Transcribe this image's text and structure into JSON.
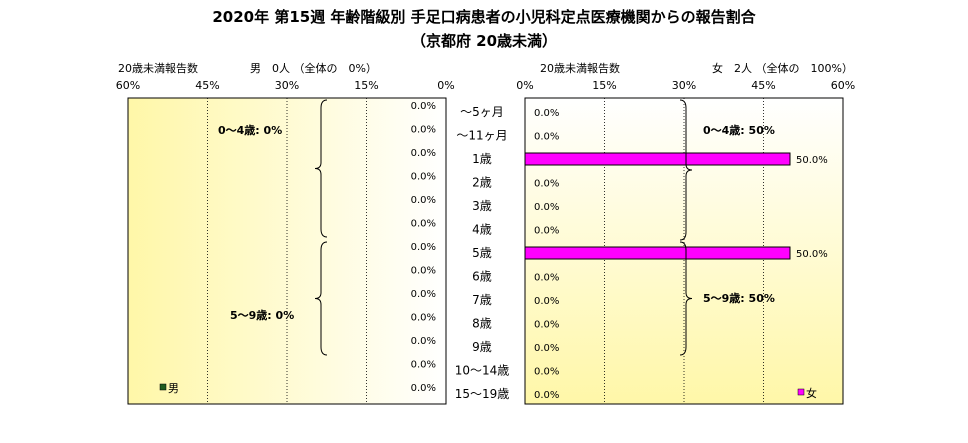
{
  "title_line1": "2020年 第15週 年齢階級別 手足口病患者の小児科定点医療機関からの報告割合",
  "title_line2": "（京都府 20歳未満）",
  "chart_data": {
    "type": "bar",
    "categories": [
      "～5ヶ月",
      "～11ヶ月",
      "1歳",
      "2歳",
      "3歳",
      "4歳",
      "5歳",
      "6歳",
      "7歳",
      "8歳",
      "9歳",
      "10～14歳",
      "15～19歳"
    ],
    "left_panel": {
      "header_label": "20歳未満報告数",
      "header_summary": "男　0人 （全体の　0%）",
      "axis_ticks": [
        "60%",
        "45%",
        "30%",
        "15%",
        "0%"
      ],
      "xlim": [
        0,
        60
      ],
      "series": [
        {
          "name": "男",
          "color": "#1f5c1f",
          "values": [
            0,
            0,
            0,
            0,
            0,
            0,
            0,
            0,
            0,
            0,
            0,
            0,
            0
          ],
          "value_labels": [
            "0.0%",
            "0.0%",
            "0.0%",
            "0.0%",
            "0.0%",
            "0.0%",
            "0.0%",
            "0.0%",
            "0.0%",
            "0.0%",
            "0.0%",
            "0.0%",
            "0.0%"
          ]
        }
      ],
      "group_labels": [
        "0～4歳: 0%",
        "5～9歳: 0%"
      ]
    },
    "right_panel": {
      "header_label": "20歳未満報告数",
      "header_summary": "女　2人 （全体の　100%）",
      "axis_ticks": [
        "0%",
        "15%",
        "30%",
        "45%",
        "60%"
      ],
      "xlim": [
        0,
        60
      ],
      "series": [
        {
          "name": "女",
          "color": "#ff00ff",
          "values": [
            0,
            0,
            50,
            0,
            0,
            0,
            50,
            0,
            0,
            0,
            0,
            0,
            0
          ],
          "value_labels": [
            "0.0%",
            "0.0%",
            "50.0%",
            "0.0%",
            "0.0%",
            "0.0%",
            "50.0%",
            "0.0%",
            "0.0%",
            "0.0%",
            "0.0%",
            "0.0%",
            "0.0%"
          ]
        }
      ],
      "group_labels": [
        "0～4歳: 50%",
        "5～9歳: 50%"
      ]
    },
    "grid": true,
    "legend_position": "bottom"
  }
}
